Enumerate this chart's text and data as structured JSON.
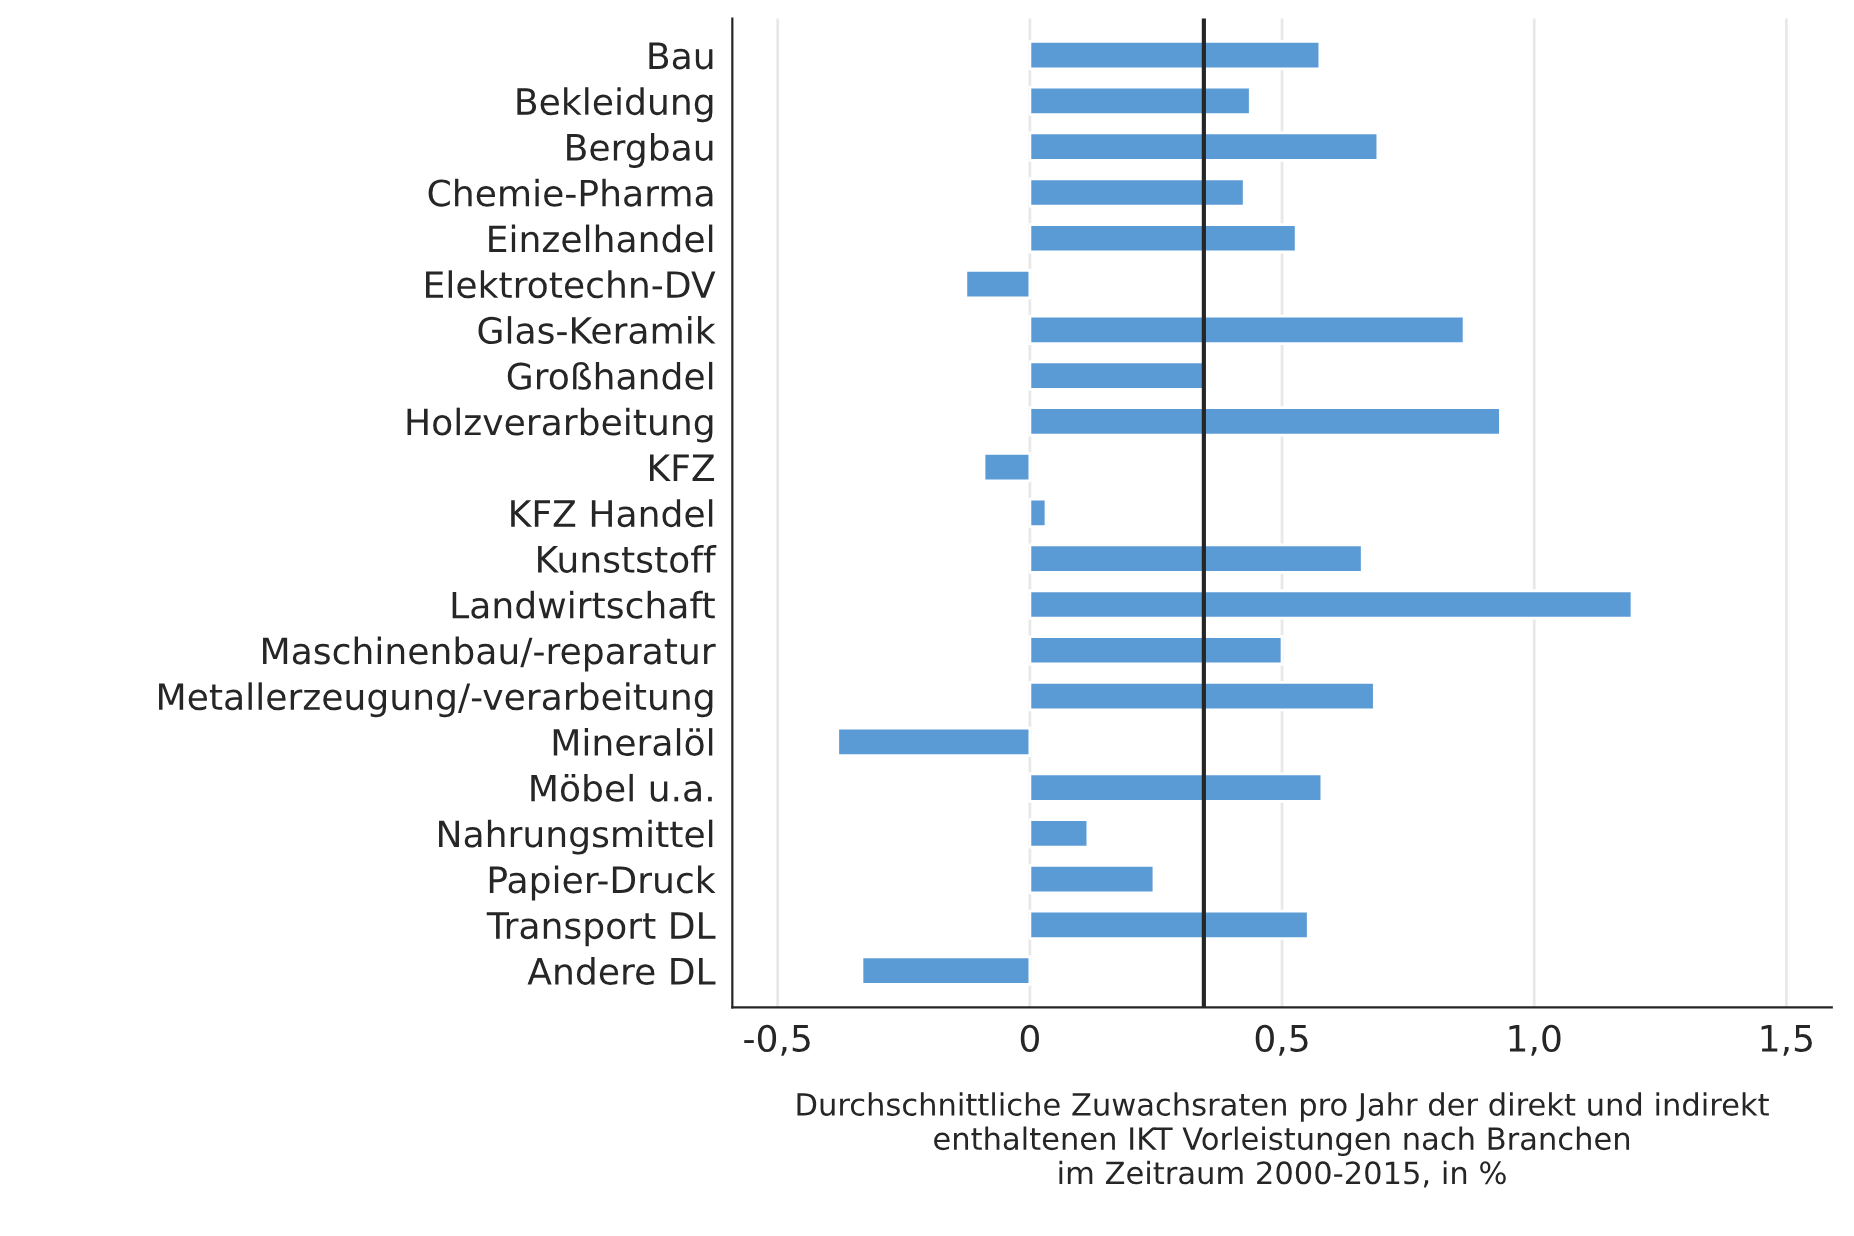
{
  "chart_data": {
    "type": "bar",
    "orientation": "horizontal",
    "categories": [
      "Bau",
      "Bekleidung",
      "Bergbau",
      "Chemie-Pharma",
      "Einzelhandel",
      "Elektrotechn-DV",
      "Glas-Keramik",
      "Großhandel",
      "Holzverarbeitung",
      "KFZ",
      "KFZ Handel",
      "Kunststoff",
      "Landwirtschaft",
      "Maschinenbau/-reparatur",
      "Metallerzeugung/-verarbeitung",
      "Mineralöl",
      "Möbel u.a.",
      "Nahrungsmittel",
      "Papier-Druck",
      "Transport DL",
      "Andere DL"
    ],
    "values": [
      0.575,
      0.437,
      0.69,
      0.425,
      0.528,
      -0.127,
      0.861,
      0.345,
      0.933,
      -0.091,
      0.032,
      0.659,
      1.194,
      0.5,
      0.683,
      -0.381,
      0.579,
      0.115,
      0.246,
      0.552,
      -0.333
    ],
    "color": "#5b9bd5",
    "xlim": [
      -0.59,
      1.59
    ],
    "xticks": [
      {
        "value": -0.5,
        "label": "-0,5"
      },
      0,
      {
        "value": 0.5,
        "label": "0,5"
      },
      {
        "value": 1.0,
        "label": "1,0"
      },
      {
        "value": 1.5,
        "label": "1,5"
      }
    ],
    "xlabel": "Durchschnittliche Zuwachsraten pro Jahr der direkt und indirekt\nenthaltenen IKT Vorleistungen nach Branchen\nim Zeitraum 2000-2015, in %",
    "ref_lines": [
      {
        "axis": "x",
        "value": 0.345,
        "color": "#262626"
      }
    ],
    "grid": "x"
  }
}
